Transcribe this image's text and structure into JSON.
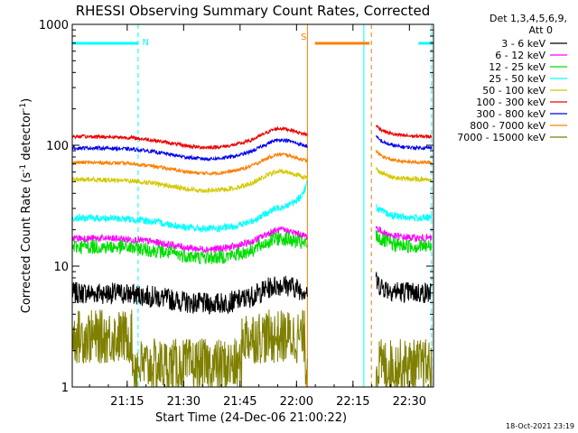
{
  "chart_data": {
    "type": "line",
    "title": "RHESSI Observing Summary Count Rates, Corrected",
    "xlabel": "Start Time (24-Dec-06 21:00:22)",
    "ylabel_main": "Corrected Count Rate (s",
    "ylabel_sup1": "-1",
    "ylabel_mid": " detector",
    "ylabel_sup2": "-1",
    "ylabel_end": ")",
    "yscale": "log",
    "ylim": [
      1,
      1000
    ],
    "xlim_minutes": [
      0,
      96
    ],
    "x_ticks": [
      "21:15",
      "21:30",
      "21:45",
      "22:00",
      "22:15",
      "22:30"
    ],
    "y_ticks": [
      "1",
      "10",
      "100",
      "1000"
    ],
    "legend_header": [
      "Det 1,3,4,5,6,9,",
      "Att 0"
    ],
    "series": [
      {
        "name": "3 - 6 keV",
        "color": "#000000",
        "base": 6.0
      },
      {
        "name": "6 - 12 keV",
        "color": "#ff00ff",
        "base": 17.0
      },
      {
        "name": "12 - 25 keV",
        "color": "#00dd00",
        "base": 14.5
      },
      {
        "name": "25 - 50 keV",
        "color": "#00ffff",
        "base": 25.0
      },
      {
        "name": "50 - 100 keV",
        "color": "#d4c800",
        "base": 52.0
      },
      {
        "name": "100 - 300 keV",
        "color": "#ee0000",
        "base": 118.0
      },
      {
        "name": "300 - 800 keV",
        "color": "#0000ee",
        "base": 95.0
      },
      {
        "name": "800 - 7000 keV",
        "color": "#ff7f00",
        "base": 72.0
      },
      {
        "name": "7000 - 15000 keV",
        "color": "#7f7f00",
        "base": 2.2
      }
    ],
    "flags": [
      {
        "label": "N",
        "color": "#00ffff",
        "start_min": 0,
        "end_min": 17.5
      },
      {
        "label": "S",
        "color": "#ff7f00",
        "start_min": 64.5,
        "end_min": 79
      },
      {
        "label": "",
        "color": "#00ffff",
        "start_min": 92,
        "end_min": 96
      }
    ],
    "orbit_lines": [
      {
        "type": "solid",
        "color": "#00ffff",
        "at_min": 0
      },
      {
        "type": "dashed",
        "color": "#00ffff",
        "at_min": 17.5
      },
      {
        "type": "solid",
        "color": "#ff7f00",
        "at_min": 62.5
      },
      {
        "type": "solid",
        "color": "#00ffff",
        "at_min": 77.5
      },
      {
        "type": "dashed",
        "color": "#ff7f00",
        "at_min": 79.5
      },
      {
        "type": "dashed",
        "color": "#00ffff",
        "at_min": 95.5
      }
    ],
    "data_gap_minutes": [
      62.5,
      80.5
    ]
  },
  "footer": {
    "timestamp": "18-Oct-2021 23:19"
  }
}
